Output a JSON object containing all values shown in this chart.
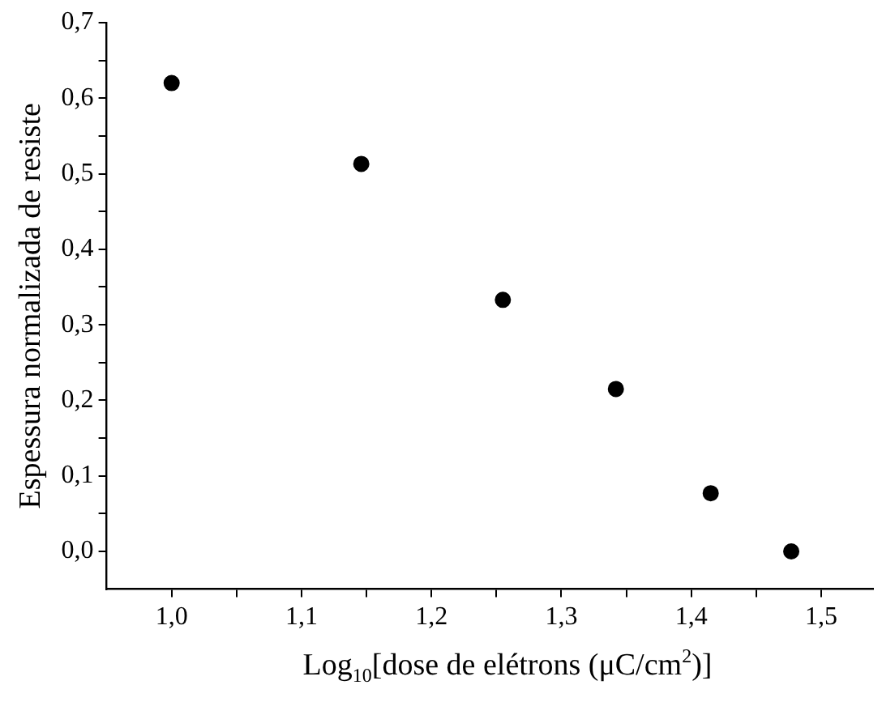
{
  "chart_data": {
    "type": "scatter",
    "xlabel": "Log$_{10}$[dose de elétrons (μC/cm$^{2}$)]",
    "ylabel": "Espessura normalizada de resiste",
    "x": [
      1.0,
      1.146,
      1.255,
      1.342,
      1.415,
      1.477
    ],
    "series": [
      {
        "color": "#000000",
        "values": [
          0.62,
          0.513,
          0.333,
          0.215,
          0.077,
          0.0
        ]
      }
    ],
    "marker": "circle",
    "grid": false,
    "legend": false,
    "xlim": [
      0.95,
      1.54
    ],
    "xticks": [
      {
        "value": 1.0,
        "label": "1,0"
      },
      {
        "value": 1.05,
        "label": null
      },
      {
        "value": 1.1,
        "label": "1,1"
      },
      {
        "value": 1.15,
        "label": null
      },
      {
        "value": 1.2,
        "label": "1,2"
      },
      {
        "value": 1.25,
        "label": null
      },
      {
        "value": 1.3,
        "label": "1,3"
      },
      {
        "value": 1.35,
        "label": null
      },
      {
        "value": 1.4,
        "label": "1,4"
      },
      {
        "value": 1.45,
        "label": null
      },
      {
        "value": 1.5,
        "label": "1,5"
      }
    ],
    "ylim": [
      -0.05,
      0.7
    ],
    "yticks": [
      {
        "value": 0.0,
        "label": "0,0"
      },
      {
        "value": 0.05,
        "label": null
      },
      {
        "value": 0.1,
        "label": "0,1"
      },
      {
        "value": 0.15,
        "label": null
      },
      {
        "value": 0.2,
        "label": "0,2"
      },
      {
        "value": 0.25,
        "label": null
      },
      {
        "value": 0.3,
        "label": "0,3"
      },
      {
        "value": 0.35,
        "label": null
      },
      {
        "value": 0.4,
        "label": "0,4"
      },
      {
        "value": 0.45,
        "label": null
      },
      {
        "value": 0.5,
        "label": "0,5"
      },
      {
        "value": 0.55,
        "label": null
      },
      {
        "value": 0.6,
        "label": "0,6"
      },
      {
        "value": 0.65,
        "label": null
      },
      {
        "value": 0.7,
        "label": "0,7"
      }
    ]
  }
}
